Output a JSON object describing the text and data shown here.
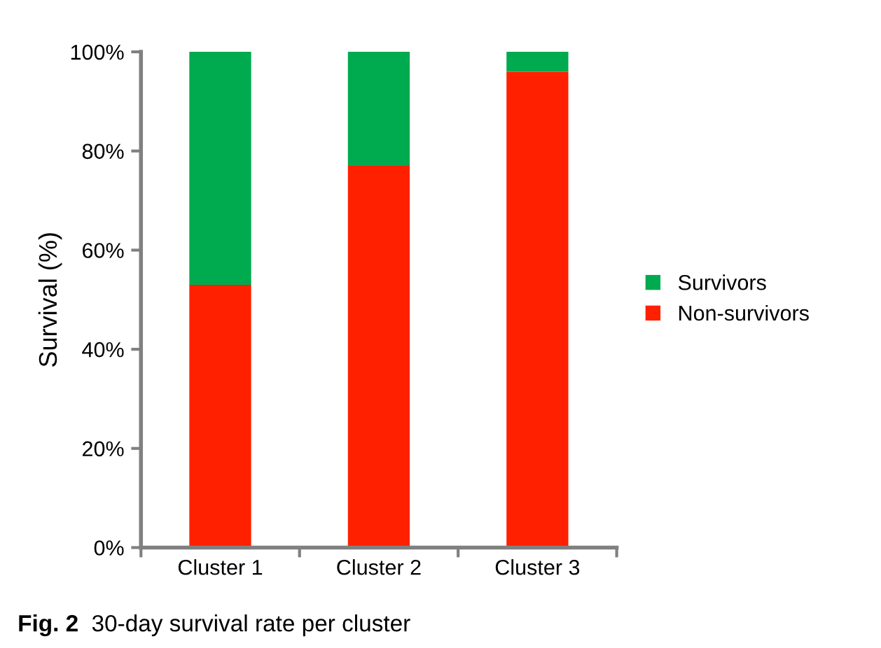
{
  "chart_data": {
    "type": "bar",
    "stacked": true,
    "ylabel": "Survival (%)",
    "categories": [
      "Cluster 1",
      "Cluster 2",
      "Cluster 3"
    ],
    "series": [
      {
        "name": "Non-survivors",
        "color": "#ff2000",
        "values": [
          53,
          77,
          96
        ]
      },
      {
        "name": "Survivors",
        "color": "#00aa4f",
        "values": [
          47,
          23,
          4
        ]
      }
    ],
    "ylim": [
      0,
      100
    ],
    "yticks": [
      {
        "value": 0,
        "label": "0%"
      },
      {
        "value": 20,
        "label": "20%"
      },
      {
        "value": 40,
        "label": "40%"
      },
      {
        "value": 60,
        "label": "60%"
      },
      {
        "value": 80,
        "label": "80%"
      },
      {
        "value": 100,
        "label": "100%"
      }
    ],
    "legend": "right",
    "grid": false,
    "annotations": [
      "Fig. 2",
      "30-day survival rate per cluster"
    ]
  }
}
